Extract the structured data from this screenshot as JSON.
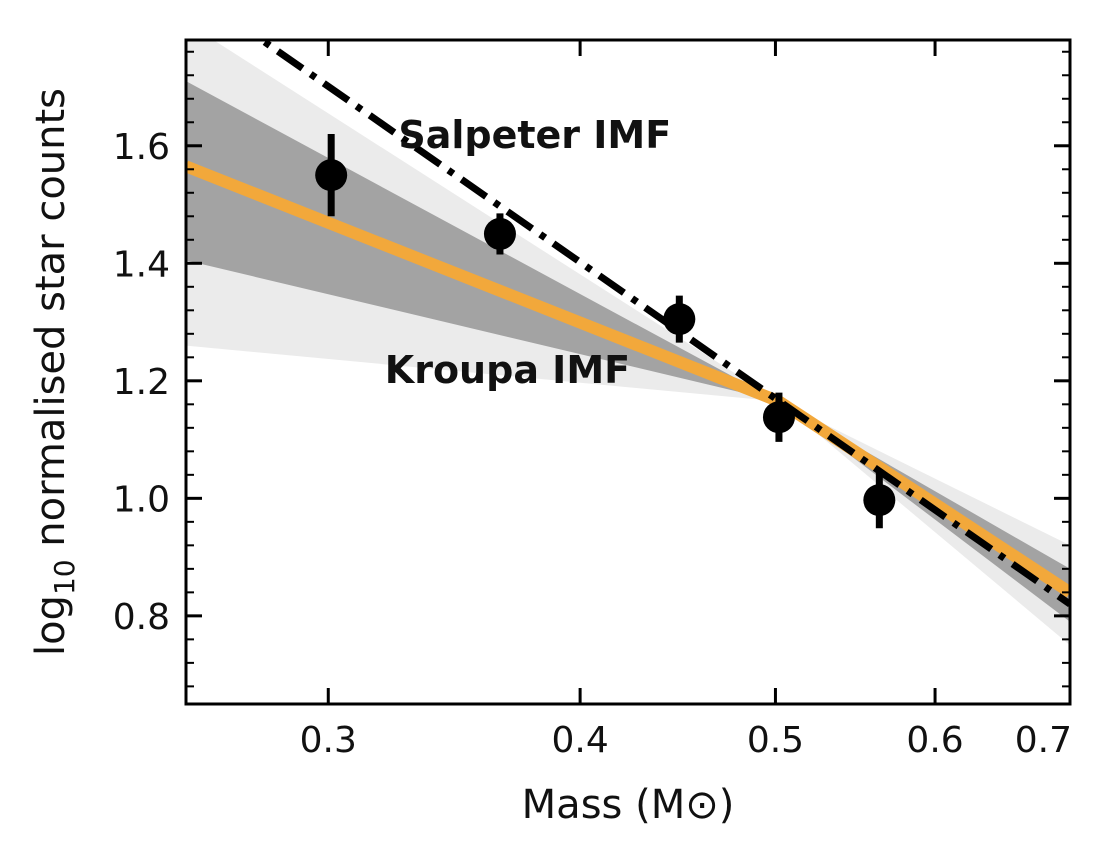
{
  "chart_data": {
    "type": "scatter",
    "xscale": "log",
    "xlabel": "Mass (M⊙)",
    "ylabel_prefix": "log",
    "ylabel_sub": "10",
    "ylabel_suffix": " normalised star counts",
    "xlim": [
      0.255,
      0.7
    ],
    "ylim": [
      0.65,
      1.78
    ],
    "xticks": [
      0.3,
      0.4,
      0.5,
      0.6,
      0.7
    ],
    "xtick_labels": [
      "0.3",
      "0.4",
      "0.5",
      "0.6",
      "0.7"
    ],
    "yticks": [
      0.8,
      1.0,
      1.2,
      1.4,
      1.6
    ],
    "ytick_labels": [
      "0.8",
      "1.0",
      "1.2",
      "1.4",
      "1.6"
    ],
    "points": [
      {
        "x": 0.301,
        "y": 1.55,
        "yerr": 0.07
      },
      {
        "x": 0.365,
        "y": 1.45,
        "yerr": 0.035
      },
      {
        "x": 0.448,
        "y": 1.305,
        "yerr": 0.04
      },
      {
        "x": 0.502,
        "y": 1.138,
        "yerr": 0.042
      },
      {
        "x": 0.563,
        "y": 0.997,
        "yerr": 0.048
      }
    ],
    "lines": [
      {
        "label": "Salpeter  IMF",
        "color": "#000000",
        "style": "dashdot",
        "points": [
          [
            0.255,
            1.87
          ],
          [
            0.7,
            0.82
          ]
        ]
      },
      {
        "label": "Kroupa  IMF",
        "color": "#f2a83b",
        "style": "solid",
        "points": [
          [
            0.255,
            1.565
          ],
          [
            0.502,
            1.165
          ],
          [
            0.7,
            0.84
          ]
        ]
      }
    ],
    "bands": [
      {
        "color": "#ebebeb",
        "upper": [
          [
            0.255,
            1.81
          ],
          [
            0.502,
            1.165
          ],
          [
            0.7,
            0.92
          ]
        ],
        "lower": [
          [
            0.255,
            1.26
          ],
          [
            0.502,
            1.165
          ],
          [
            0.7,
            0.75
          ]
        ]
      },
      {
        "color": "#a3a3a3",
        "upper": [
          [
            0.255,
            1.71
          ],
          [
            0.502,
            1.165
          ],
          [
            0.7,
            0.88
          ]
        ],
        "lower": [
          [
            0.255,
            1.405
          ],
          [
            0.502,
            1.165
          ],
          [
            0.7,
            0.79
          ]
        ]
      }
    ],
    "annotations": [
      {
        "text": "Salpeter  IMF",
        "x": 0.325,
        "y": 1.62
      },
      {
        "text": "Kroupa  IMF",
        "x": 0.32,
        "y": 1.22
      }
    ]
  }
}
